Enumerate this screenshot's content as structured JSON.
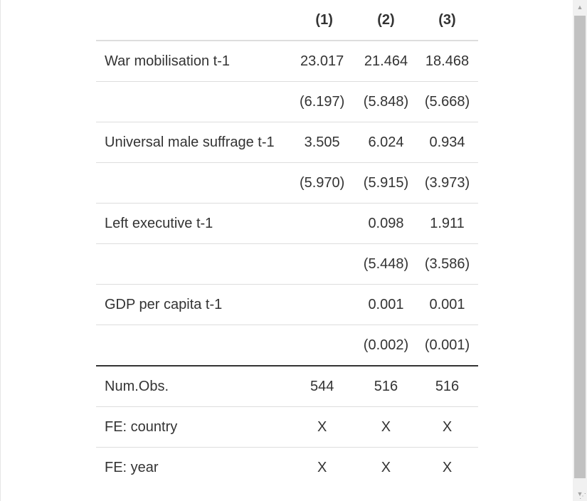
{
  "table": {
    "headers": [
      "",
      "(1)",
      "(2)",
      "(3)"
    ],
    "rows": [
      {
        "label": "War mobilisation t-1",
        "values": [
          "23.017",
          "21.464",
          "18.468"
        ]
      },
      {
        "label": "",
        "values": [
          "(6.197)",
          "(5.848)",
          "(5.668)"
        ]
      },
      {
        "label": "Universal male suffrage t-1",
        "values": [
          "3.505",
          "6.024",
          "0.934"
        ]
      },
      {
        "label": "",
        "values": [
          "(5.970)",
          "(5.915)",
          "(3.973)"
        ]
      },
      {
        "label": "Left executive t-1",
        "values": [
          "",
          "0.098",
          "1.911"
        ]
      },
      {
        "label": "",
        "values": [
          "",
          "(5.448)",
          "(3.586)"
        ]
      },
      {
        "label": "GDP per capita t-1",
        "values": [
          "",
          "0.001",
          "0.001"
        ]
      },
      {
        "label": "",
        "values": [
          "",
          "(0.002)",
          "(0.001)"
        ]
      },
      {
        "label": "Num.Obs.",
        "values": [
          "544",
          "516",
          "516"
        ]
      },
      {
        "label": "FE: country",
        "values": [
          "X",
          "X",
          "X"
        ]
      },
      {
        "label": "FE: year",
        "values": [
          "X",
          "X",
          "X"
        ]
      }
    ]
  },
  "scrollbar": {
    "up_glyph": "▲",
    "down_glyph": "▼",
    "resize_glyph": "⋰"
  }
}
